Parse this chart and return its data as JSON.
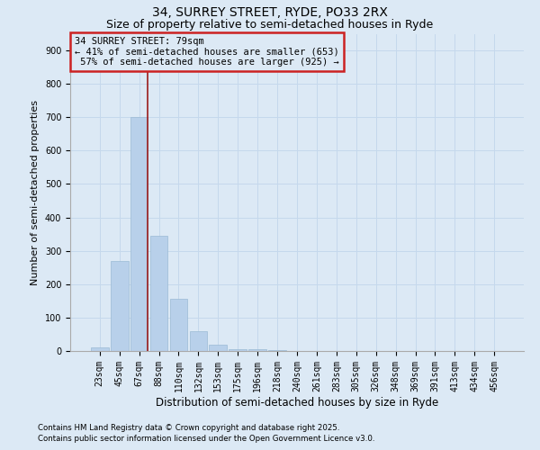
{
  "title": "34, SURREY STREET, RYDE, PO33 2RX",
  "subtitle": "Size of property relative to semi-detached houses in Ryde",
  "xlabel": "Distribution of semi-detached houses by size in Ryde",
  "ylabel": "Number of semi-detached properties",
  "categories": [
    "23sqm",
    "45sqm",
    "67sqm",
    "88sqm",
    "110sqm",
    "132sqm",
    "153sqm",
    "175sqm",
    "196sqm",
    "218sqm",
    "240sqm",
    "261sqm",
    "283sqm",
    "305sqm",
    "326sqm",
    "348sqm",
    "369sqm",
    "391sqm",
    "413sqm",
    "434sqm",
    "456sqm"
  ],
  "values": [
    10,
    270,
    700,
    345,
    155,
    60,
    20,
    5,
    5,
    2,
    1,
    0,
    0,
    0,
    0,
    0,
    0,
    0,
    0,
    0,
    0
  ],
  "bar_color": "#b8d0ea",
  "bar_edgecolor": "#9bbad4",
  "grid_color": "#c5d8ec",
  "background_color": "#dce9f5",
  "property_label": "34 SURREY STREET: 79sqm",
  "pct_smaller": 41,
  "pct_smaller_count": 653,
  "pct_larger": 57,
  "pct_larger_count": 925,
  "red_line_color": "#9b1c1c",
  "annotation_box_color": "#cc2222",
  "ylim": [
    0,
    950
  ],
  "yticks": [
    0,
    100,
    200,
    300,
    400,
    500,
    600,
    700,
    800,
    900
  ],
  "red_line_x": 2.42,
  "footnote1": "Contains HM Land Registry data © Crown copyright and database right 2025.",
  "footnote2": "Contains public sector information licensed under the Open Government Licence v3.0.",
  "title_fontsize": 10,
  "subtitle_fontsize": 9,
  "tick_fontsize": 7,
  "ylabel_fontsize": 8,
  "xlabel_fontsize": 8.5,
  "annot_fontsize": 7.5
}
